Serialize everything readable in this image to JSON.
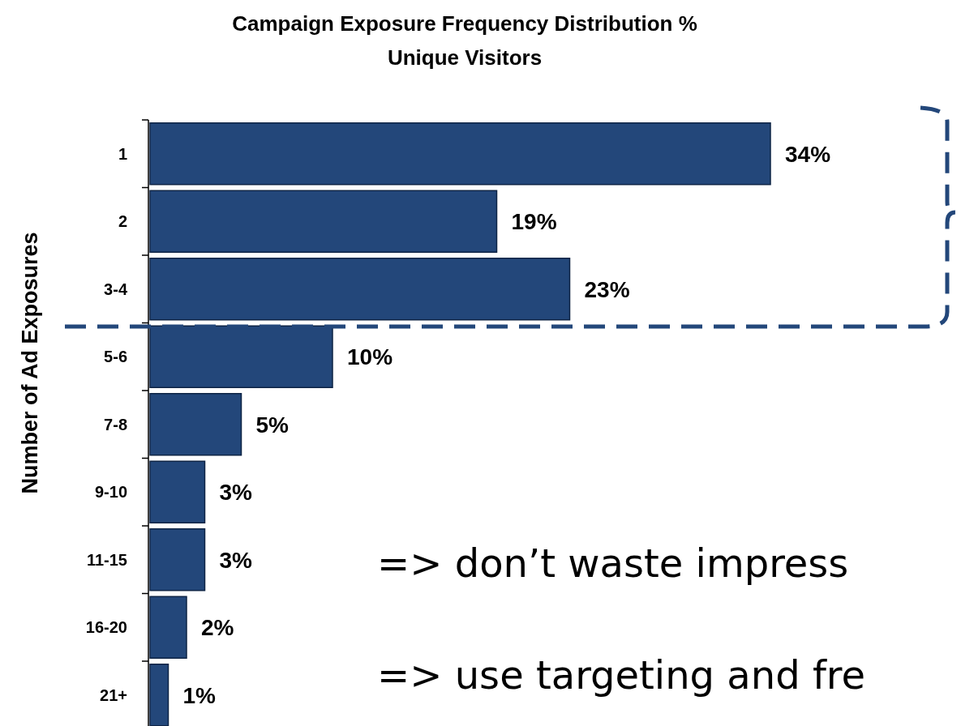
{
  "chart_data": {
    "type": "bar",
    "orientation": "horizontal",
    "title": "Campaign Exposure Frequency Distribution %",
    "subtitle": "Unique Visitors",
    "ylabel": "Number of Ad Exposures",
    "categories": [
      "1",
      "2",
      "3-4",
      "5-6",
      "7-8",
      "9-10",
      "11-15",
      "16-20",
      "21+"
    ],
    "values": [
      34,
      19,
      23,
      10,
      5,
      3,
      3,
      2,
      1
    ],
    "value_labels": [
      "34%",
      "19%",
      "23%",
      "10%",
      "5%",
      "3%",
      "3%",
      "2%",
      "1%"
    ],
    "color": "#23477a",
    "annotations": [
      "=> don’t waste impress",
      "=> use targeting and fre"
    ]
  }
}
